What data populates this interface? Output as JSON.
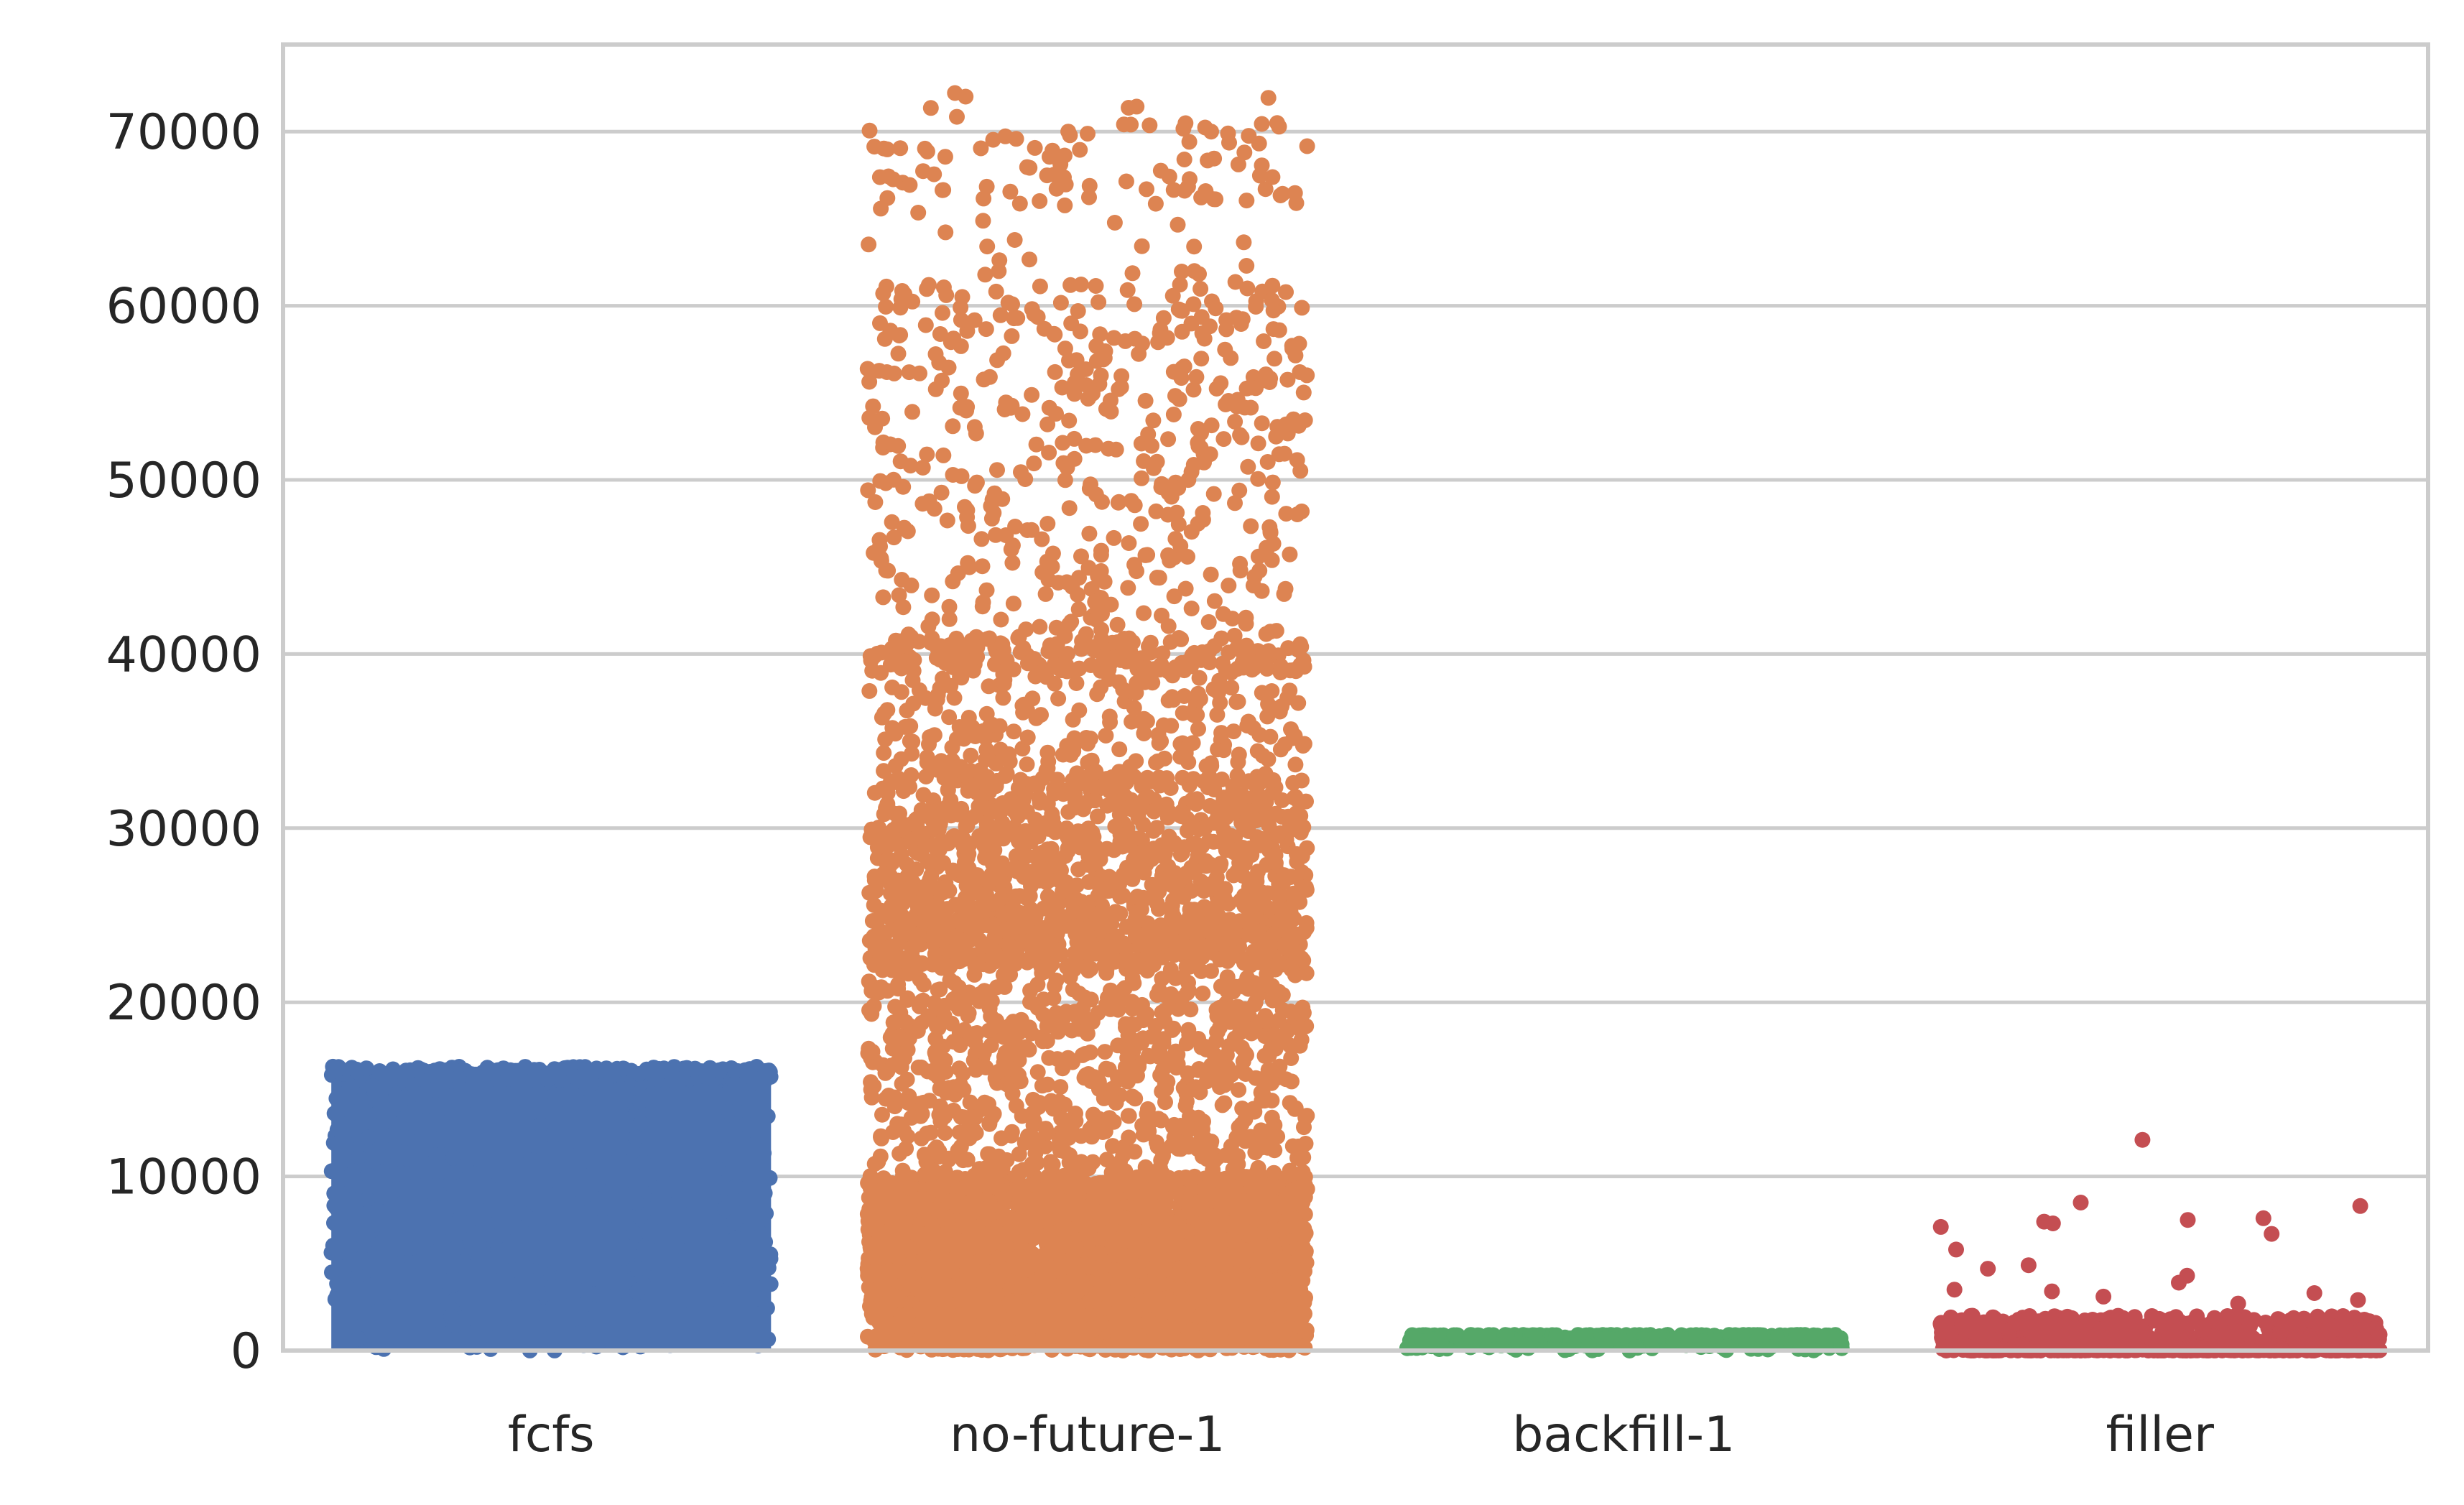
{
  "chart_data": {
    "type": "scatter",
    "subtype": "strip",
    "title": "",
    "xlabel": "",
    "ylabel": "",
    "ylim": [
      0,
      75000
    ],
    "yticks": [
      0,
      10000,
      20000,
      30000,
      40000,
      50000,
      60000,
      70000
    ],
    "ytick_labels": [
      "0",
      "10000",
      "20000",
      "30000",
      "40000",
      "50000",
      "60000",
      "70000"
    ],
    "grid": true,
    "grid_axis": "y",
    "categories": [
      "fcfs",
      "no-future-1",
      "backfill-1",
      "filler"
    ],
    "series": [
      {
        "category": "fcfs",
        "color": "#4c72b0",
        "distribution": "uniform-dense",
        "y_min": 0,
        "y_max": 16300
      },
      {
        "category": "no-future-1",
        "color": "#dd8452",
        "distribution": "bands",
        "y_min": 0,
        "y_max": 72300,
        "bands": [
          {
            "from": 0,
            "to": 10000,
            "density": 1.0
          },
          {
            "from": 10000,
            "to": 22000,
            "density": 0.2
          },
          {
            "from": 22000,
            "to": 25000,
            "density": 0.55
          },
          {
            "from": 25000,
            "to": 33000,
            "density": 0.3
          },
          {
            "from": 33000,
            "to": 39000,
            "density": 0.12
          },
          {
            "from": 39000,
            "to": 41000,
            "density": 0.3
          },
          {
            "from": 41000,
            "to": 62000,
            "density": 0.07
          },
          {
            "from": 62000,
            "to": 66000,
            "density": 0.015
          },
          {
            "from": 66000,
            "to": 70500,
            "density": 0.06
          },
          {
            "from": 70500,
            "to": 72300,
            "density": 0.012
          }
        ]
      },
      {
        "category": "backfill-1",
        "color": "#55a868",
        "distribution": "uniform-dense",
        "y_min": 0,
        "y_max": 900
      },
      {
        "category": "filler",
        "color": "#c44e52",
        "distribution": "mostly-low",
        "y_min": 0,
        "y_max": 2000,
        "outliers": [
          12100,
          8500,
          8300,
          7600,
          7500,
          7400,
          7300,
          7100,
          6700,
          5800,
          4900,
          4700,
          4300,
          3900,
          3500,
          3400,
          3300,
          3100,
          2900,
          2700
        ]
      }
    ]
  }
}
